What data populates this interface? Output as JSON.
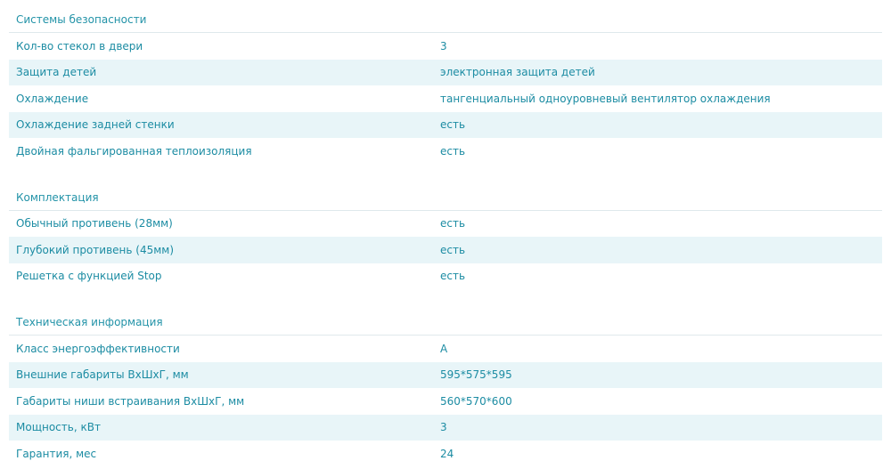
{
  "sections": [
    {
      "title": "Системы безопасности",
      "rows": [
        {
          "label": "Кол-во стекол в двери",
          "value": "3"
        },
        {
          "label": "Защита детей",
          "value": "электронная защита детей"
        },
        {
          "label": "Охлаждение",
          "value": "тангенциальный одноуровневый вентилятор охлаждения"
        },
        {
          "label": "Охлаждение задней стенки",
          "value": "есть"
        },
        {
          "label": "Двойная фальгированная теплоизоляция",
          "value": "есть"
        }
      ]
    },
    {
      "title": "Комплектация",
      "rows": [
        {
          "label": "Обычный противень (28мм)",
          "value": "есть"
        },
        {
          "label": "Глубокий противень (45мм)",
          "value": "есть"
        },
        {
          "label": "Решетка с функцией Stop",
          "value": "есть"
        }
      ]
    },
    {
      "title": "Техническая информация",
      "rows": [
        {
          "label": "Класс энергоэффективности",
          "value": "A"
        },
        {
          "label": "Внешние габариты ВхШхГ, мм",
          "value": "595*575*595"
        },
        {
          "label": "Габариты ниши встраивания ВхШхГ, мм",
          "value": "560*570*600"
        },
        {
          "label": "Мощность, кВт",
          "value": "3"
        },
        {
          "label": "Гарантия, мес",
          "value": "24"
        }
      ]
    }
  ],
  "colors": {
    "text": "#1c8ca3",
    "stripe": "#e8f5f8",
    "divider": "#dfe9ec"
  }
}
